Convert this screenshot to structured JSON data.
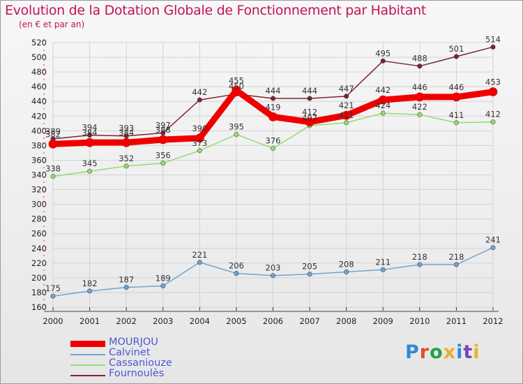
{
  "title": "Evolution de la Dotation Globale de Fonctionnement par Habitant",
  "subtitle": "(en € et par an)",
  "logo": {
    "text": "Proxiti",
    "colors": [
      "#2f8ad6",
      "#e54a2e",
      "#1fa246",
      "#e9b02a",
      "#2f8ad6",
      "#7a45b8",
      "#e9b02a"
    ]
  },
  "chart_data": {
    "type": "line",
    "x": [
      "2000",
      "2001",
      "2002",
      "2003",
      "2004",
      "2005",
      "2006",
      "2007",
      "2008",
      "2009",
      "2010",
      "2011",
      "2012"
    ],
    "ylim": [
      160,
      520
    ],
    "yticks": [
      160,
      180,
      200,
      220,
      240,
      260,
      280,
      300,
      320,
      340,
      360,
      380,
      400,
      420,
      440,
      460,
      480,
      500,
      520
    ],
    "grid": true,
    "legend_position": "bottom-left",
    "series": [
      {
        "name": "MOURJOU",
        "color": "#ee0000",
        "values": [
          382,
          384,
          384,
          388,
          390,
          455,
          419,
          412,
          421,
          442,
          446,
          446,
          453
        ]
      },
      {
        "name": "Calvinet",
        "color": "#6fa4d2",
        "values": [
          175,
          182,
          187,
          189,
          221,
          206,
          203,
          205,
          208,
          211,
          218,
          218,
          241
        ]
      },
      {
        "name": "Cassaniouze",
        "color": "#92dc73",
        "values": [
          338,
          345,
          352,
          356,
          373,
          395,
          376,
          407,
          411,
          424,
          422,
          411,
          412
        ]
      },
      {
        "name": "Fournoulès",
        "color": "#7b2630",
        "values": [
          389,
          394,
          393,
          397,
          442,
          450,
          444,
          444,
          447,
          495,
          488,
          501,
          514
        ]
      }
    ]
  }
}
